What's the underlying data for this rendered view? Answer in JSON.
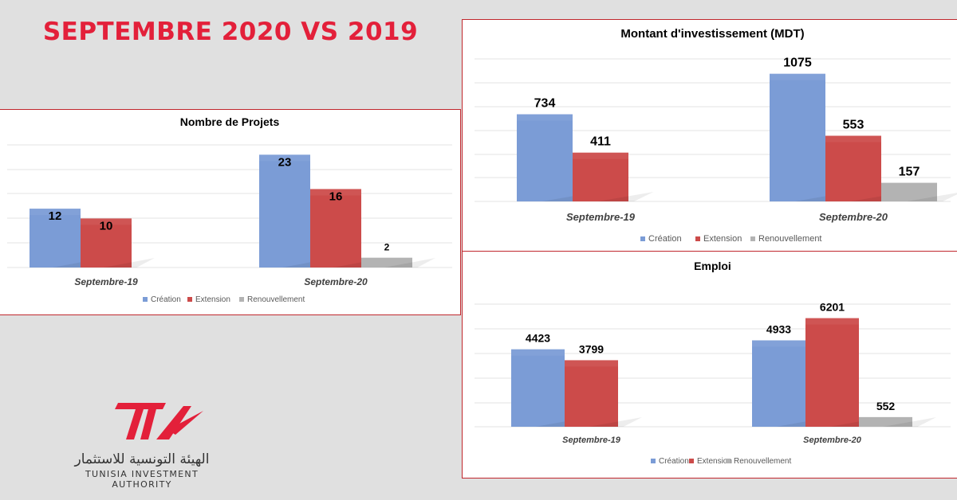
{
  "page": {
    "title": "SEPTEMBRE 2020 VS 2019"
  },
  "logo": {
    "mark_text": "TIA",
    "arabic_name": "الهيئة التونسية للاستثمار",
    "english_name": "TUNISIA INVESTMENT AUTHORITY",
    "color": "#e3203a"
  },
  "colors": {
    "creation": "#7b9cd6",
    "extension": "#cc4b4a",
    "renouvellement": "#b3b3b3",
    "border": "#c0272d",
    "title_red": "#e3203a"
  },
  "chart_data": [
    {
      "type": "bar",
      "title": "Nombre de Projets",
      "categories": [
        "Septembre-19",
        "Septembre-20"
      ],
      "series": [
        {
          "name": "Création",
          "values": [
            12,
            23
          ]
        },
        {
          "name": "Extension",
          "values": [
            10,
            16
          ]
        },
        {
          "name": "Renouvellement",
          "values": [
            null,
            2
          ]
        }
      ],
      "data_labels": [
        [
          "12",
          "23"
        ],
        [
          "10",
          "16"
        ],
        [
          "",
          "2"
        ]
      ],
      "ylim": [
        0,
        25
      ],
      "grid": true,
      "legend": "bottom"
    },
    {
      "type": "bar",
      "title": "Montant d'investissement (MDT)",
      "categories": [
        "Septembre-19",
        "Septembre-20"
      ],
      "series": [
        {
          "name": "Création",
          "values": [
            734,
            1075
          ]
        },
        {
          "name": "Extension",
          "values": [
            411,
            553
          ]
        },
        {
          "name": "Renouvellement",
          "values": [
            null,
            157
          ]
        }
      ],
      "data_labels": [
        [
          "734",
          "1075"
        ],
        [
          "411",
          "553"
        ],
        [
          "",
          "157"
        ]
      ],
      "ylim": [
        0,
        1200
      ],
      "grid": true,
      "legend": "bottom"
    },
    {
      "type": "bar",
      "title": "Emploi",
      "categories": [
        "Septembre-19",
        "Septembre-20"
      ],
      "series": [
        {
          "name": "Création",
          "values": [
            4423,
            4933
          ]
        },
        {
          "name": "Extension",
          "values": [
            3799,
            6201
          ]
        },
        {
          "name": "Renouvellement",
          "values": [
            null,
            552
          ]
        }
      ],
      "data_labels": [
        [
          "4423",
          "4933"
        ],
        [
          "3799",
          "6201"
        ],
        [
          "",
          "552"
        ]
      ],
      "ylim": [
        0,
        7000
      ],
      "grid": true,
      "legend": "bottom"
    }
  ]
}
